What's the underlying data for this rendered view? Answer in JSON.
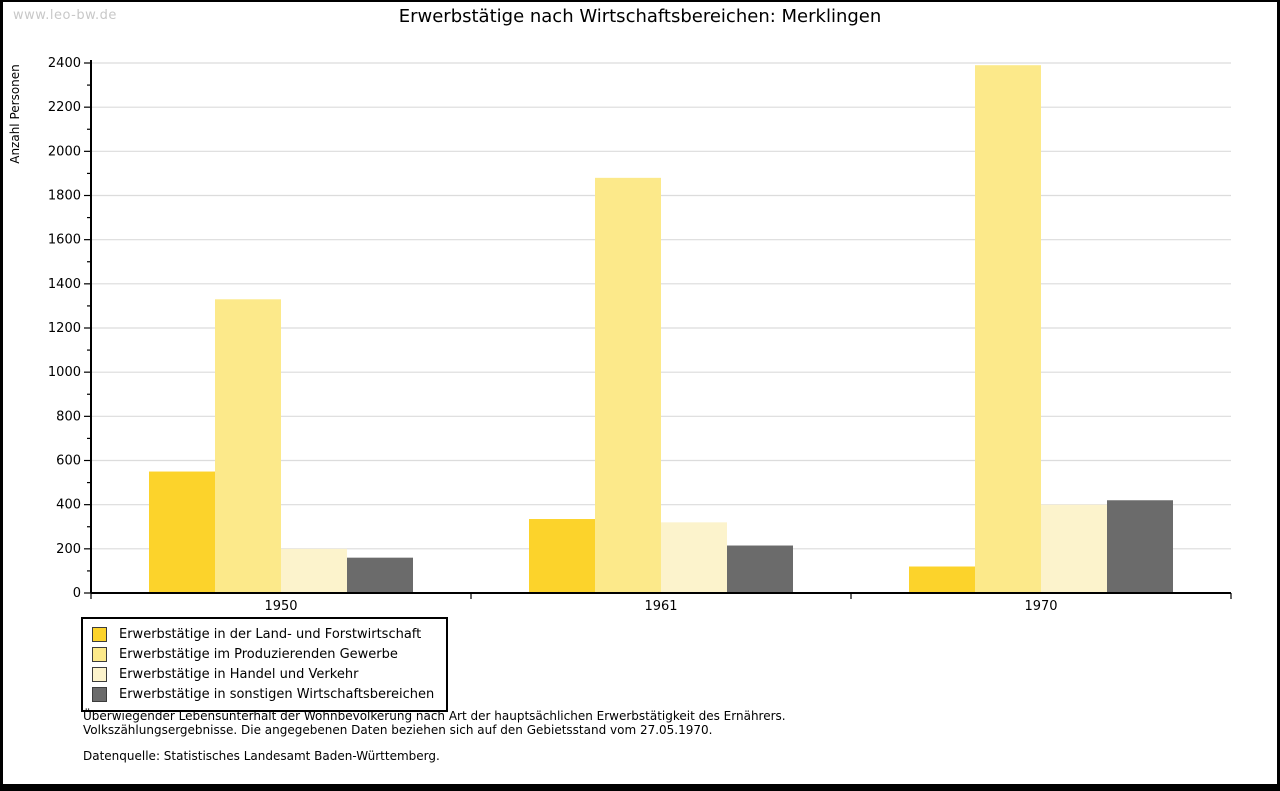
{
  "watermark": "www.leo-bw.de",
  "footnotes": {
    "line1": "Überwiegender Lebensunterhalt der Wohnbevölkerung nach Art der hauptsächlichen Erwerbstätigkeit des Ernährers.",
    "line2": "Volkszählungsergebnisse. Die angegebenen Daten beziehen sich auf den Gebietsstand vom 27.05.1970.",
    "source": "Datenquelle: Statistisches Landesamt Baden-Württemberg."
  },
  "colors": {
    "axis": "#000000",
    "grid": "#dcdcdc",
    "watermark": "#c8c8c8",
    "background": "#ffffff",
    "swatch_border": "#3c3c3c"
  },
  "chart_data": {
    "type": "bar",
    "title": "Erwerbstätige nach Wirtschaftsbereichen: Merklingen",
    "xlabel": "",
    "ylabel": "Anzahl Personen",
    "categories": [
      "1950",
      "1961",
      "1970"
    ],
    "series": [
      {
        "name": "Erwerbstätige in der Land- und Forstwirtschaft",
        "color": "#fcd32b",
        "values": [
          550,
          335,
          120
        ]
      },
      {
        "name": "Erwerbstätige im Produzierenden Gewerbe",
        "color": "#fce98a",
        "values": [
          1330,
          1880,
          2390
        ]
      },
      {
        "name": "Erwerbstätige in Handel und Verkehr",
        "color": "#fcf3cc",
        "values": [
          200,
          320,
          400
        ]
      },
      {
        "name": "Erwerbstätige in sonstigen Wirtschaftsbereichen",
        "color": "#6b6b6b",
        "values": [
          160,
          215,
          420
        ]
      }
    ],
    "ylim": [
      0,
      2400
    ],
    "y_tick_step": 200,
    "y_minor_step": 100,
    "grid": "horizontal",
    "legend_position": "bottom-left"
  }
}
